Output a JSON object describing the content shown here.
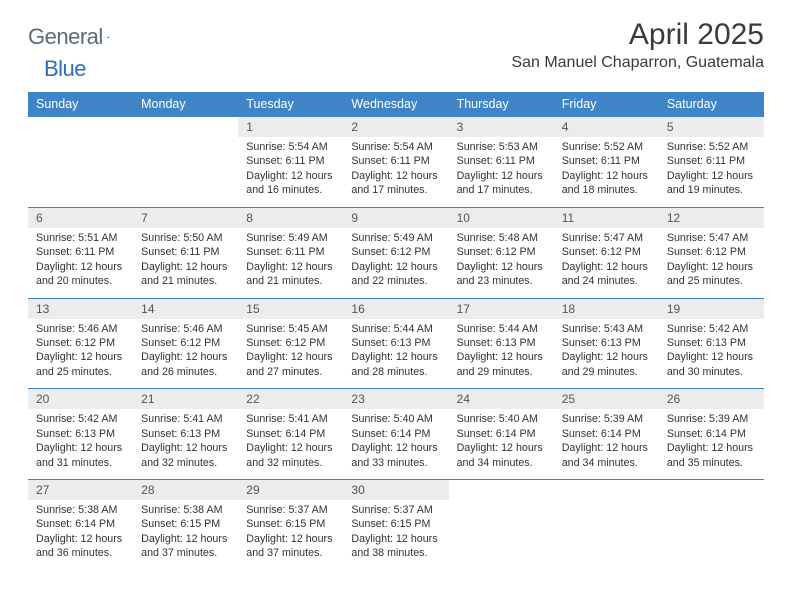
{
  "brand": {
    "name1": "General",
    "name2": "Blue"
  },
  "title": "April 2025",
  "location": "San Manuel Chaparron, Guatemala",
  "colors": {
    "header_bg": "#3e84c6",
    "header_fg": "#ffffff",
    "daynum_bg": "#ececec",
    "rule": "#3e84c6",
    "brand_gray": "#5f6a72",
    "brand_blue": "#2a71b8"
  },
  "day_headers": [
    "Sunday",
    "Monday",
    "Tuesday",
    "Wednesday",
    "Thursday",
    "Friday",
    "Saturday"
  ],
  "weeks": [
    [
      {
        "n": "",
        "lines": []
      },
      {
        "n": "",
        "lines": []
      },
      {
        "n": "1",
        "lines": [
          "Sunrise: 5:54 AM",
          "Sunset: 6:11 PM",
          "Daylight: 12 hours and 16 minutes."
        ]
      },
      {
        "n": "2",
        "lines": [
          "Sunrise: 5:54 AM",
          "Sunset: 6:11 PM",
          "Daylight: 12 hours and 17 minutes."
        ]
      },
      {
        "n": "3",
        "lines": [
          "Sunrise: 5:53 AM",
          "Sunset: 6:11 PM",
          "Daylight: 12 hours and 17 minutes."
        ]
      },
      {
        "n": "4",
        "lines": [
          "Sunrise: 5:52 AM",
          "Sunset: 6:11 PM",
          "Daylight: 12 hours and 18 minutes."
        ]
      },
      {
        "n": "5",
        "lines": [
          "Sunrise: 5:52 AM",
          "Sunset: 6:11 PM",
          "Daylight: 12 hours and 19 minutes."
        ]
      }
    ],
    [
      {
        "n": "6",
        "lines": [
          "Sunrise: 5:51 AM",
          "Sunset: 6:11 PM",
          "Daylight: 12 hours and 20 minutes."
        ]
      },
      {
        "n": "7",
        "lines": [
          "Sunrise: 5:50 AM",
          "Sunset: 6:11 PM",
          "Daylight: 12 hours and 21 minutes."
        ]
      },
      {
        "n": "8",
        "lines": [
          "Sunrise: 5:49 AM",
          "Sunset: 6:11 PM",
          "Daylight: 12 hours and 21 minutes."
        ]
      },
      {
        "n": "9",
        "lines": [
          "Sunrise: 5:49 AM",
          "Sunset: 6:12 PM",
          "Daylight: 12 hours and 22 minutes."
        ]
      },
      {
        "n": "10",
        "lines": [
          "Sunrise: 5:48 AM",
          "Sunset: 6:12 PM",
          "Daylight: 12 hours and 23 minutes."
        ]
      },
      {
        "n": "11",
        "lines": [
          "Sunrise: 5:47 AM",
          "Sunset: 6:12 PM",
          "Daylight: 12 hours and 24 minutes."
        ]
      },
      {
        "n": "12",
        "lines": [
          "Sunrise: 5:47 AM",
          "Sunset: 6:12 PM",
          "Daylight: 12 hours and 25 minutes."
        ]
      }
    ],
    [
      {
        "n": "13",
        "lines": [
          "Sunrise: 5:46 AM",
          "Sunset: 6:12 PM",
          "Daylight: 12 hours and 25 minutes."
        ]
      },
      {
        "n": "14",
        "lines": [
          "Sunrise: 5:46 AM",
          "Sunset: 6:12 PM",
          "Daylight: 12 hours and 26 minutes."
        ]
      },
      {
        "n": "15",
        "lines": [
          "Sunrise: 5:45 AM",
          "Sunset: 6:12 PM",
          "Daylight: 12 hours and 27 minutes."
        ]
      },
      {
        "n": "16",
        "lines": [
          "Sunrise: 5:44 AM",
          "Sunset: 6:13 PM",
          "Daylight: 12 hours and 28 minutes."
        ]
      },
      {
        "n": "17",
        "lines": [
          "Sunrise: 5:44 AM",
          "Sunset: 6:13 PM",
          "Daylight: 12 hours and 29 minutes."
        ]
      },
      {
        "n": "18",
        "lines": [
          "Sunrise: 5:43 AM",
          "Sunset: 6:13 PM",
          "Daylight: 12 hours and 29 minutes."
        ]
      },
      {
        "n": "19",
        "lines": [
          "Sunrise: 5:42 AM",
          "Sunset: 6:13 PM",
          "Daylight: 12 hours and 30 minutes."
        ]
      }
    ],
    [
      {
        "n": "20",
        "lines": [
          "Sunrise: 5:42 AM",
          "Sunset: 6:13 PM",
          "Daylight: 12 hours and 31 minutes."
        ]
      },
      {
        "n": "21",
        "lines": [
          "Sunrise: 5:41 AM",
          "Sunset: 6:13 PM",
          "Daylight: 12 hours and 32 minutes."
        ]
      },
      {
        "n": "22",
        "lines": [
          "Sunrise: 5:41 AM",
          "Sunset: 6:14 PM",
          "Daylight: 12 hours and 32 minutes."
        ]
      },
      {
        "n": "23",
        "lines": [
          "Sunrise: 5:40 AM",
          "Sunset: 6:14 PM",
          "Daylight: 12 hours and 33 minutes."
        ]
      },
      {
        "n": "24",
        "lines": [
          "Sunrise: 5:40 AM",
          "Sunset: 6:14 PM",
          "Daylight: 12 hours and 34 minutes."
        ]
      },
      {
        "n": "25",
        "lines": [
          "Sunrise: 5:39 AM",
          "Sunset: 6:14 PM",
          "Daylight: 12 hours and 34 minutes."
        ]
      },
      {
        "n": "26",
        "lines": [
          "Sunrise: 5:39 AM",
          "Sunset: 6:14 PM",
          "Daylight: 12 hours and 35 minutes."
        ]
      }
    ],
    [
      {
        "n": "27",
        "lines": [
          "Sunrise: 5:38 AM",
          "Sunset: 6:14 PM",
          "Daylight: 12 hours and 36 minutes."
        ]
      },
      {
        "n": "28",
        "lines": [
          "Sunrise: 5:38 AM",
          "Sunset: 6:15 PM",
          "Daylight: 12 hours and 37 minutes."
        ]
      },
      {
        "n": "29",
        "lines": [
          "Sunrise: 5:37 AM",
          "Sunset: 6:15 PM",
          "Daylight: 12 hours and 37 minutes."
        ]
      },
      {
        "n": "30",
        "lines": [
          "Sunrise: 5:37 AM",
          "Sunset: 6:15 PM",
          "Daylight: 12 hours and 38 minutes."
        ]
      },
      {
        "n": "",
        "lines": []
      },
      {
        "n": "",
        "lines": []
      },
      {
        "n": "",
        "lines": []
      }
    ]
  ]
}
